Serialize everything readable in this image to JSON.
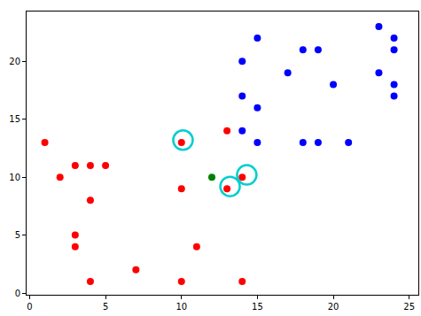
{
  "chart_data": {
    "type": "scatter",
    "xlim": [
      -0.2,
      25.6
    ],
    "xticks": [
      0,
      5,
      10,
      15,
      20,
      25
    ],
    "ylim": [
      -0.15,
      24.3
    ],
    "yticks": [
      0,
      5,
      10,
      15,
      20
    ],
    "grid": false,
    "series": [
      {
        "color": "#ff0000",
        "marker": "circle",
        "x": [
          1,
          2,
          3,
          4,
          5,
          4,
          3,
          3,
          4,
          7,
          10,
          10,
          10,
          11,
          13,
          13,
          14,
          14
        ],
        "values": [
          13,
          10,
          11,
          11,
          11,
          8,
          5,
          4,
          1,
          2,
          13,
          9,
          1,
          4,
          14,
          9,
          10,
          1
        ]
      },
      {
        "color": "#0000ff",
        "marker": "circle",
        "x": [
          15,
          14,
          14,
          14,
          15,
          15,
          17,
          18,
          19,
          20,
          18,
          19,
          21,
          23,
          24,
          24,
          23,
          24,
          24
        ],
        "values": [
          22,
          20,
          17,
          14,
          16,
          13,
          19,
          21,
          21,
          18,
          13,
          13,
          13,
          23,
          22,
          21,
          19,
          18,
          17
        ]
      },
      {
        "color": "#008000",
        "marker": "circle",
        "x": [
          12
        ],
        "values": [
          10
        ]
      },
      {
        "color": "#00ced1",
        "marker": "circle-open",
        "x": [
          10.1,
          13.2,
          14.3
        ],
        "values": [
          13.2,
          9.2,
          10.2
        ]
      }
    ]
  }
}
